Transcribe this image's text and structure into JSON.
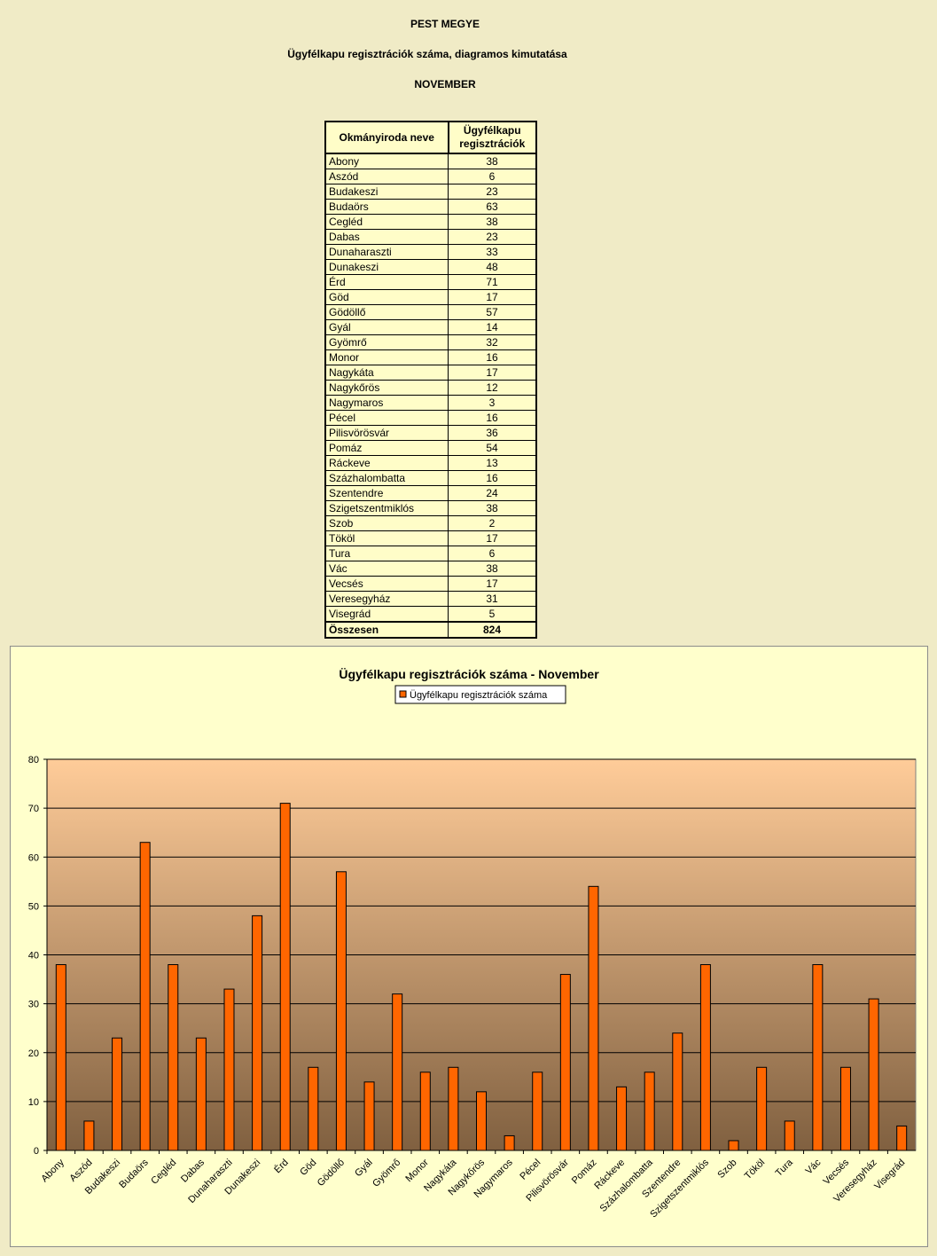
{
  "header": {
    "title": "PEST MEGYE",
    "subtitle": "Ügyfélkapu regisztrációk száma, diagramos kimutatása",
    "month": "NOVEMBER"
  },
  "table": {
    "col1": "Okmányiroda neve",
    "col2_line1": "Ügyfélkapu",
    "col2_line2": "regisztrációk",
    "total_label": "Összesen",
    "total_value": "824"
  },
  "colors": {
    "bar": "#ff6600",
    "bar_stroke": "#000000",
    "panel_bg": "#ffffcc",
    "page_bg": "#f0ebc6",
    "gradient_top": "#ffcc99",
    "gradient_bottom": "#806040"
  },
  "chart_data": {
    "type": "bar",
    "title": "Ügyfélkapu regisztrációk száma - November",
    "xlabel": "",
    "ylabel": "",
    "ylim": [
      0,
      80
    ],
    "yticks": [
      0,
      10,
      20,
      30,
      40,
      50,
      60,
      70,
      80
    ],
    "grid": true,
    "legend_position": "top-center",
    "categories": [
      "Abony",
      "Aszód",
      "Budakeszi",
      "Budaörs",
      "Cegléd",
      "Dabas",
      "Dunaharaszti",
      "Dunakeszi",
      "Érd",
      "Göd",
      "Gödöllő",
      "Gyál",
      "Gyömrő",
      "Monor",
      "Nagykáta",
      "Nagykőrös",
      "Nagymaros",
      "Pécel",
      "Pilisvörösvár",
      "Pomáz",
      "Ráckeve",
      "Százhalombatta",
      "Szentendre",
      "Szigetszentmiklós",
      "Szob",
      "Tököl",
      "Tura",
      "Vác",
      "Vecsés",
      "Veresegyház",
      "Visegrád"
    ],
    "series": [
      {
        "name": "Ügyfélkapu regisztrációk száma",
        "values": [
          38,
          6,
          23,
          63,
          38,
          23,
          33,
          48,
          71,
          17,
          57,
          14,
          32,
          16,
          17,
          12,
          3,
          16,
          36,
          54,
          13,
          16,
          24,
          38,
          2,
          17,
          6,
          38,
          17,
          31,
          5
        ]
      }
    ]
  }
}
